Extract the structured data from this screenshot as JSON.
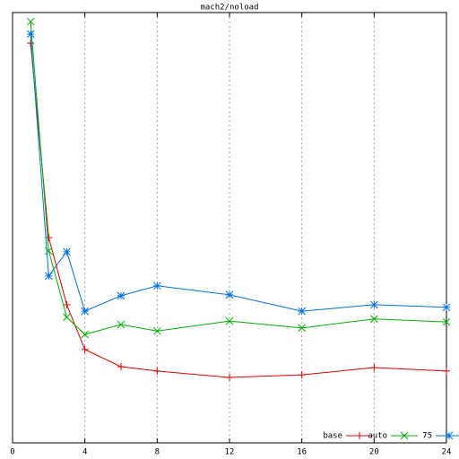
{
  "chart_data": {
    "type": "line",
    "title": "mach2/noload",
    "x": [
      1,
      2,
      3,
      4,
      6,
      8,
      12,
      16,
      20,
      24
    ],
    "xlim": [
      0,
      24
    ],
    "xticks": [
      0,
      4,
      8,
      12,
      16,
      20,
      24
    ],
    "ylim": [
      0,
      100
    ],
    "grid": true,
    "legend": "bottom-right",
    "series": [
      {
        "name": "base",
        "color": "#e00000",
        "marker": "plus",
        "values": [
          92.9,
          47.7,
          32.1,
          21.7,
          17.7,
          16.7,
          15.2,
          15.8,
          17.5,
          16.7
        ]
      },
      {
        "name": "auto",
        "color": "#00b000",
        "marker": "cross",
        "values": [
          97.9,
          44.6,
          29.2,
          25.2,
          27.5,
          26.0,
          28.3,
          26.7,
          28.8,
          28.1
        ]
      },
      {
        "name": "75",
        "color": "#0070e0",
        "marker": "star",
        "values": [
          95.0,
          38.8,
          44.4,
          30.6,
          34.2,
          36.5,
          34.4,
          30.6,
          32.1,
          31.5
        ]
      }
    ]
  }
}
